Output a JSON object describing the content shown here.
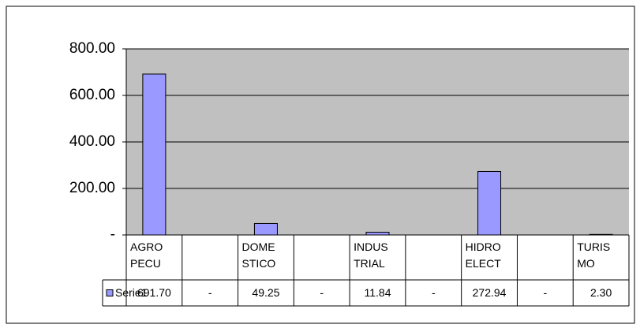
{
  "chart_data": {
    "type": "bar",
    "categories": [
      "AGRO\nPECU",
      null,
      "DOME\nSTICO",
      null,
      "INDUS\nTRIAL",
      null,
      "HIDRO\nELECT",
      null,
      "TURIS\nMO"
    ],
    "series": [
      {
        "name": "Serie1",
        "color": "#9999ff",
        "values": [
          691.7,
          0,
          49.25,
          0,
          11.84,
          0,
          272.94,
          0,
          2.3
        ],
        "value_labels": [
          "691.70",
          "-",
          "49.25",
          "-",
          "11.84",
          "-",
          "272.94",
          "-",
          "2.30"
        ]
      }
    ],
    "ylim": [
      0,
      800
    ],
    "yticks": [
      {
        "value": 0,
        "label": "-"
      },
      {
        "value": 200,
        "label": "200.00"
      },
      {
        "value": 400,
        "label": "400.00"
      },
      {
        "value": 600,
        "label": "600.00"
      },
      {
        "value": 800,
        "label": "800.00"
      }
    ],
    "grid": true
  }
}
